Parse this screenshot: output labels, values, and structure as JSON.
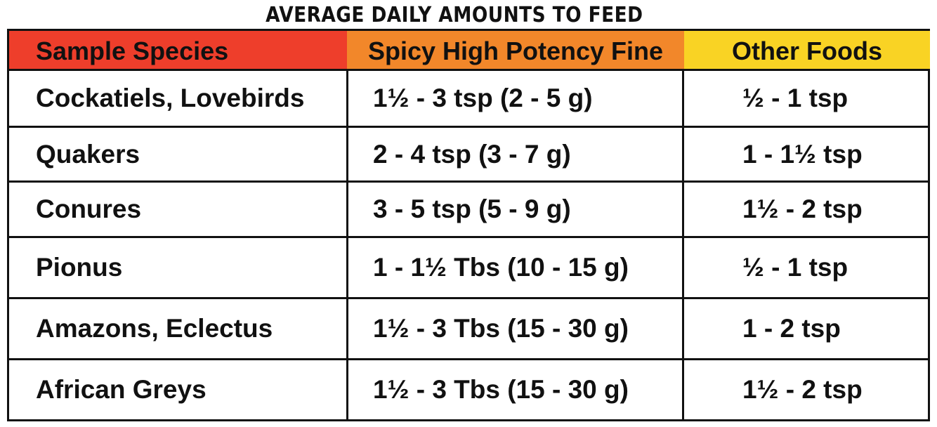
{
  "title": "AVERAGE DAILY AMOUNTS TO FEED",
  "headers": [
    "Sample Species",
    "Spicy High Potency Fine",
    "Other Foods"
  ],
  "rows": [
    {
      "species": "Cockatiels, Lovebirds",
      "spicy": "1½ - 3 tsp (2 - 5 g)",
      "other": "½  - 1 tsp"
    },
    {
      "species": "Quakers",
      "spicy": "2 - 4 tsp (3 - 7 g)",
      "other": "1 - 1½ tsp"
    },
    {
      "species": "Conures",
      "spicy": "3 - 5 tsp (5 - 9 g)",
      "other": "1½ - 2 tsp"
    },
    {
      "species": "Pionus",
      "spicy": "1 - 1½ Tbs (10 - 15 g)",
      "other": "½  - 1 tsp"
    },
    {
      "species": "Amazons, Eclectus",
      "spicy": "1½ - 3 Tbs (15 - 30 g)",
      "other": "1 - 2 tsp"
    },
    {
      "species": "African Greys",
      "spicy": "1½ - 3 Tbs (15 - 30 g)",
      "other": "1½ - 2 tsp"
    }
  ],
  "colors": {
    "header_species": "#ee3e2b",
    "header_spicy": "#f2872a",
    "header_other": "#f9d324"
  }
}
